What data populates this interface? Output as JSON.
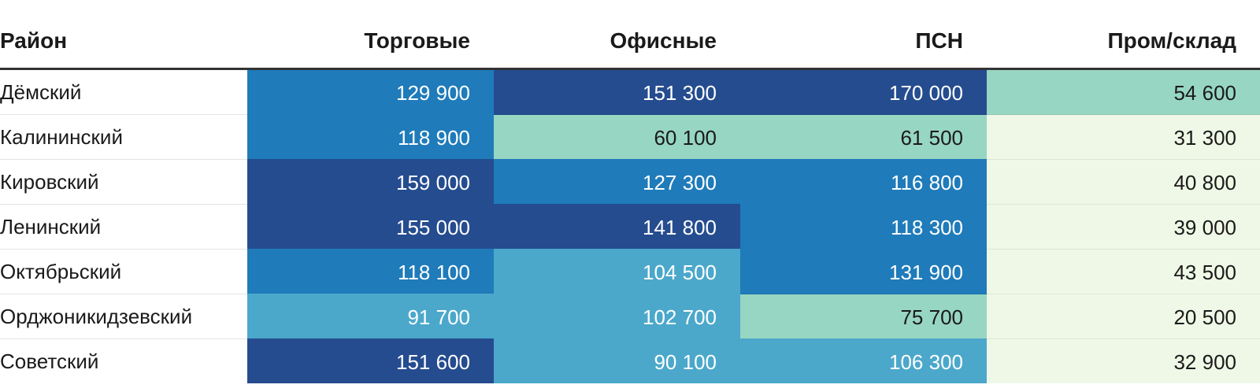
{
  "chart_data": {
    "type": "table",
    "columns": [
      "Район",
      "Торговые",
      "Офисные",
      "ПСН",
      "Пром/склад"
    ],
    "rows": [
      {
        "district": "Дёмский",
        "values": [
          "129 900",
          "151 300",
          "170 000",
          "54 600"
        ]
      },
      {
        "district": "Калининский",
        "values": [
          "118 900",
          "60 100",
          "61 500",
          "31 300"
        ]
      },
      {
        "district": "Кировский",
        "values": [
          "159 000",
          "127 300",
          "116 800",
          "40 800"
        ]
      },
      {
        "district": "Ленинский",
        "values": [
          "155 000",
          "141 800",
          "118 300",
          "39 000"
        ]
      },
      {
        "district": "Октябрьский",
        "values": [
          "118 100",
          "104 500",
          "131 900",
          "43 500"
        ]
      },
      {
        "district": "Орджоникидзевский",
        "values": [
          "91 700",
          "102 700",
          "75 700",
          "20 500"
        ]
      },
      {
        "district": "Советский",
        "values": [
          "151 600",
          "90 100",
          "106 300",
          "32 900"
        ]
      }
    ],
    "heat_colors": {
      "darkest": "#254c8f",
      "dark": "#1f7bba",
      "mid": "#4ba8cb",
      "light": "#97d6c2",
      "lightest": "#eff8e6"
    },
    "cell_shades": [
      [
        "dark",
        "darkest",
        "darkest",
        "light"
      ],
      [
        "dark",
        "light",
        "light",
        "lightest"
      ],
      [
        "darkest",
        "dark",
        "dark",
        "lightest"
      ],
      [
        "darkest",
        "darkest",
        "dark",
        "lightest"
      ],
      [
        "dark",
        "mid",
        "dark",
        "lightest"
      ],
      [
        "mid",
        "mid",
        "light",
        "lightest"
      ],
      [
        "darkest",
        "mid",
        "mid",
        "lightest"
      ]
    ]
  }
}
